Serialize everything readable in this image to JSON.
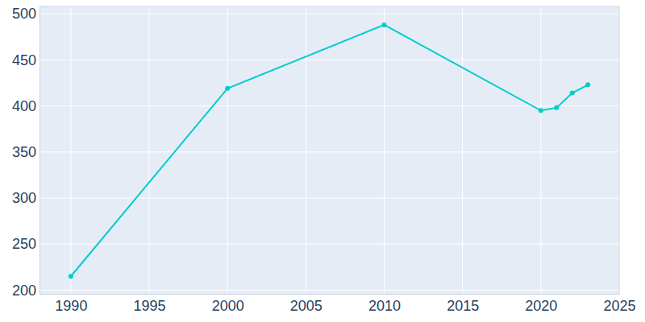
{
  "chart_data": {
    "type": "line",
    "x": [
      1990,
      2000,
      2010,
      2020,
      2021,
      2022,
      2023
    ],
    "values": [
      215,
      419,
      488,
      395,
      398,
      414,
      423
    ],
    "color": "#00cccc",
    "marker": "circle",
    "xlim": [
      1988,
      2025
    ],
    "ylim": [
      196,
      508
    ],
    "xticks": [
      1990,
      1995,
      2000,
      2005,
      2010,
      2015,
      2020,
      2025
    ],
    "yticks": [
      200,
      250,
      300,
      350,
      400,
      450,
      500
    ],
    "grid": true
  }
}
